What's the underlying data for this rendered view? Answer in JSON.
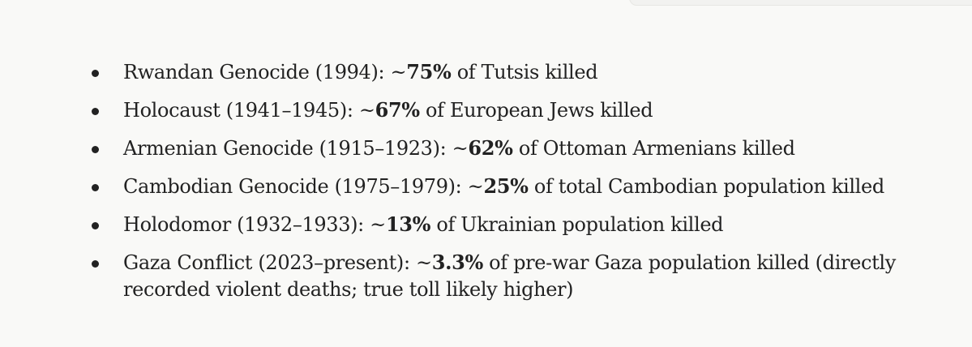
{
  "items": [
    {
      "before": "Rwandan Genocide (1994): ~",
      "value": "75%",
      "after": " of Tutsis killed"
    },
    {
      "before": "Holocaust (1941–1945): ~",
      "value": "67%",
      "after": " of European Jews killed"
    },
    {
      "before": "Armenian Genocide (1915–1923): ~",
      "value": "62%",
      "after": " of Ottoman Armenians killed"
    },
    {
      "before": "Cambodian Genocide (1975–1979): ~",
      "value": "25%",
      "after": " of total Cambodian population killed"
    },
    {
      "before": "Holodomor (1932–1933): ~",
      "value": "13%",
      "after": " of Ukrainian population killed"
    },
    {
      "before": "Gaza Conflict (2023–present): ~",
      "value": "3.3%",
      "after": " of pre-war Gaza population killed (directly recorded violent deaths; true toll likely higher)"
    }
  ]
}
